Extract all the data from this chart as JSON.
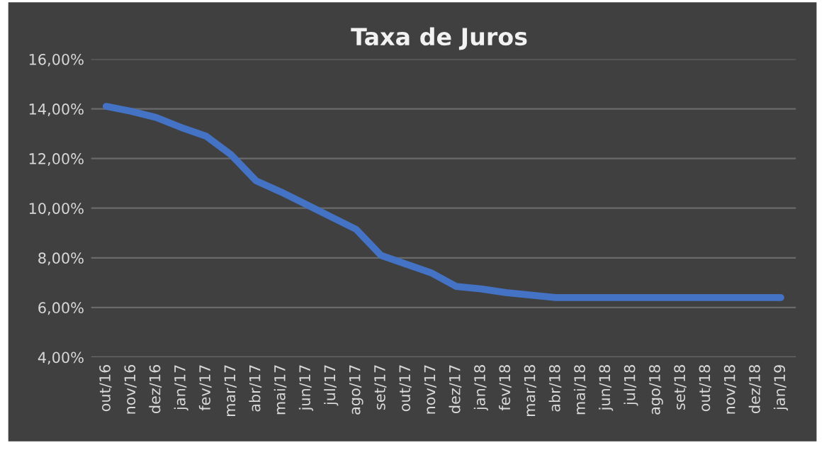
{
  "chart_data": {
    "type": "line",
    "title": "Taxa de Juros",
    "categories": [
      "out/16",
      "nov/16",
      "dez/16",
      "jan/17",
      "fev/17",
      "mar/17",
      "abr/17",
      "mai/17",
      "jun/17",
      "jul/17",
      "ago/17",
      "set/17",
      "out/17",
      "nov/17",
      "dez/17",
      "jan/18",
      "fev/18",
      "mar/18",
      "abr/18",
      "mai/18",
      "jun/18",
      "jul/18",
      "ago/18",
      "set/18",
      "out/18",
      "nov/18",
      "dez/18",
      "jan/19"
    ],
    "series": [
      {
        "color": "#4472c4",
        "values": [
          14.1,
          13.9,
          13.65,
          13.25,
          12.9,
          12.15,
          11.1,
          10.65,
          10.15,
          9.65,
          9.15,
          8.1,
          7.75,
          7.4,
          6.85,
          6.75,
          6.6,
          6.5,
          6.4,
          6.4,
          6.4,
          6.4,
          6.4,
          6.4,
          6.4,
          6.4,
          6.4,
          6.4
        ]
      }
    ],
    "ylim": [
      4,
      16
    ],
    "yticks": [
      {
        "value": 4,
        "label": "4,00%"
      },
      {
        "value": 6,
        "label": "6,00%"
      },
      {
        "value": 8,
        "label": "8,00%"
      },
      {
        "value": 10,
        "label": "10,00%"
      },
      {
        "value": 12,
        "label": "12,00%"
      },
      {
        "value": 14,
        "label": "14,00%"
      },
      {
        "value": 16,
        "label": "16,00%"
      }
    ],
    "grid": "y",
    "legend": false,
    "marker": "none",
    "line_style": "solid"
  }
}
